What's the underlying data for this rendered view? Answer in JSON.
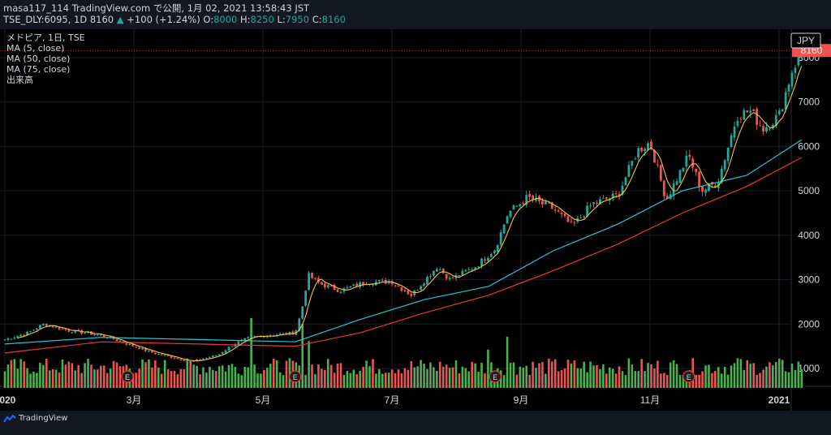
{
  "header": {
    "line1": "masa117_114 TradingView.com で公開, 1月 02, 2021 13:58:43 JST",
    "symbol": "TSE_DLY:6095, 1D 8160",
    "change_arrow": "▲",
    "change": "+100 (+1.24%)",
    "o_label": "O:",
    "o_val": "8000",
    "h_label": "H:",
    "h_val": "8250",
    "l_label": "L:",
    "l_val": "7950",
    "c_label": "C:",
    "c_val": "8160"
  },
  "legend": {
    "title": "メドピア, 1日, TSE",
    "ma5": "MA (5, close)",
    "ma50": "MA (50, close)",
    "ma75": "MA (75, close)",
    "volume": "出来高"
  },
  "currency_badge": "JPY",
  "last_price_label": "8160",
  "earnings_marker": "E",
  "footer": {
    "brand": "TradingView"
  },
  "colors": {
    "up": "#26a69a",
    "down": "#ef5350",
    "ma5": "#f5c242",
    "ma50": "#26c6da",
    "ma75": "#e53935",
    "vol_up": "#4caf50",
    "vol_down": "#ef5350",
    "bg": "#000000"
  },
  "chart_data": {
    "type": "candlestick",
    "ylim": [
      500,
      8500
    ],
    "y_ticks": [
      1000,
      2000,
      3000,
      4000,
      5000,
      6000,
      7000,
      8000
    ],
    "x_ticks": [
      {
        "label": "2020",
        "month": 0
      },
      {
        "label": "3月",
        "month": 2
      },
      {
        "label": "5月",
        "month": 4
      },
      {
        "label": "7月",
        "month": 6
      },
      {
        "label": "9月",
        "month": 8
      },
      {
        "label": "11月",
        "month": 10
      },
      {
        "label": "2021",
        "month": 12
      }
    ],
    "price_path": [
      {
        "month": 0.0,
        "price": 1650
      },
      {
        "month": 0.35,
        "price": 1800
      },
      {
        "month": 0.6,
        "price": 2000
      },
      {
        "month": 1.0,
        "price": 1850
      },
      {
        "month": 1.5,
        "price": 1750
      },
      {
        "month": 1.9,
        "price": 1550
      },
      {
        "month": 2.3,
        "price": 1350
      },
      {
        "month": 2.6,
        "price": 1250
      },
      {
        "month": 2.9,
        "price": 1150
      },
      {
        "month": 3.3,
        "price": 1300
      },
      {
        "month": 3.55,
        "price": 1550
      },
      {
        "month": 3.8,
        "price": 1700
      },
      {
        "month": 4.1,
        "price": 1750
      },
      {
        "month": 4.5,
        "price": 1800
      },
      {
        "month": 4.6,
        "price": 2300
      },
      {
        "month": 4.7,
        "price": 3100
      },
      {
        "month": 4.9,
        "price": 2900
      },
      {
        "month": 5.2,
        "price": 2750
      },
      {
        "month": 5.6,
        "price": 2950
      },
      {
        "month": 6.0,
        "price": 2950
      },
      {
        "month": 6.3,
        "price": 2650
      },
      {
        "month": 6.7,
        "price": 3300
      },
      {
        "month": 6.9,
        "price": 3000
      },
      {
        "month": 7.3,
        "price": 3300
      },
      {
        "month": 7.6,
        "price": 3700
      },
      {
        "month": 7.8,
        "price": 4500
      },
      {
        "month": 8.1,
        "price": 4850
      },
      {
        "month": 8.5,
        "price": 4600
      },
      {
        "month": 8.8,
        "price": 4200
      },
      {
        "month": 9.1,
        "price": 4700
      },
      {
        "month": 9.5,
        "price": 4900
      },
      {
        "month": 9.8,
        "price": 5900
      },
      {
        "month": 10.0,
        "price": 6100
      },
      {
        "month": 10.25,
        "price": 4800
      },
      {
        "month": 10.6,
        "price": 5800
      },
      {
        "month": 10.8,
        "price": 5000
      },
      {
        "month": 11.05,
        "price": 5200
      },
      {
        "month": 11.35,
        "price": 6700
      },
      {
        "month": 11.55,
        "price": 6800
      },
      {
        "month": 11.75,
        "price": 6400
      },
      {
        "month": 12.0,
        "price": 6700
      },
      {
        "month": 12.2,
        "price": 7700
      },
      {
        "month": 12.35,
        "price": 8160
      }
    ],
    "ma50": [
      {
        "month": 0.0,
        "price": 1550
      },
      {
        "month": 1.5,
        "price": 1700
      },
      {
        "month": 3.0,
        "price": 1650
      },
      {
        "month": 4.5,
        "price": 1600
      },
      {
        "month": 5.5,
        "price": 2100
      },
      {
        "month": 6.5,
        "price": 2550
      },
      {
        "month": 7.5,
        "price": 2850
      },
      {
        "month": 8.5,
        "price": 3650
      },
      {
        "month": 9.5,
        "price": 4250
      },
      {
        "month": 10.5,
        "price": 5000
      },
      {
        "month": 11.5,
        "price": 5350
      },
      {
        "month": 12.35,
        "price": 6150
      }
    ],
    "ma75": [
      {
        "month": 0.0,
        "price": 1350
      },
      {
        "month": 1.5,
        "price": 1600
      },
      {
        "month": 3.0,
        "price": 1550
      },
      {
        "month": 4.5,
        "price": 1500
      },
      {
        "month": 5.5,
        "price": 1800
      },
      {
        "month": 6.5,
        "price": 2250
      },
      {
        "month": 7.5,
        "price": 2650
      },
      {
        "month": 8.5,
        "price": 3200
      },
      {
        "month": 9.5,
        "price": 3800
      },
      {
        "month": 10.5,
        "price": 4500
      },
      {
        "month": 11.5,
        "price": 5100
      },
      {
        "month": 12.35,
        "price": 5750
      }
    ],
    "volume_spikes": [
      {
        "month": 3.8,
        "volume": 0.82
      },
      {
        "month": 4.6,
        "volume": 0.75
      },
      {
        "month": 4.7,
        "volume": 0.55
      },
      {
        "month": 7.5,
        "volume": 0.45
      },
      {
        "month": 7.8,
        "volume": 0.6
      },
      {
        "month": 7.9,
        "volume": 0.3
      },
      {
        "month": 5.6,
        "volume": 0.32
      },
      {
        "month": 6.8,
        "volume": 0.25
      },
      {
        "month": 11.35,
        "volume": 0.35
      }
    ],
    "earnings_months": [
      1.9,
      4.5,
      7.6,
      10.6
    ]
  }
}
